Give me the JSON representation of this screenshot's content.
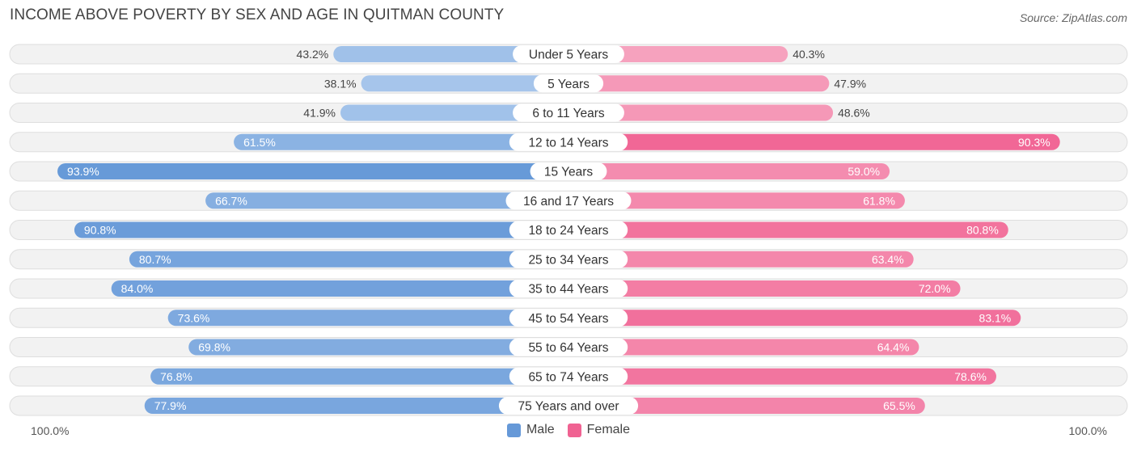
{
  "title": "INCOME ABOVE POVERTY BY SEX AND AGE IN QUITMAN COUNTY",
  "source": "Source: ZipAtlas.com",
  "colors": {
    "male": "#6699d8",
    "female": "#f06292",
    "male_light": "#a9c7ec",
    "female_light": "#f7a8c2"
  },
  "axis": {
    "left_label": "100.0%",
    "right_label": "100.0%"
  },
  "legend": [
    {
      "label": "Male",
      "color": "#6699d8"
    },
    {
      "label": "Female",
      "color": "#f06292"
    }
  ],
  "chart_data": {
    "type": "bar",
    "orientation": "horizontal-diverging",
    "categories": [
      "Under 5 Years",
      "5 Years",
      "6 to 11 Years",
      "12 to 14 Years",
      "15 Years",
      "16 and 17 Years",
      "18 to 24 Years",
      "25 to 34 Years",
      "35 to 44 Years",
      "45 to 54 Years",
      "55 to 64 Years",
      "65 to 74 Years",
      "75 Years and over"
    ],
    "series": [
      {
        "name": "Male",
        "values": [
          43.2,
          38.1,
          41.9,
          61.5,
          93.9,
          66.7,
          90.8,
          80.7,
          84.0,
          73.6,
          69.8,
          76.8,
          77.9
        ]
      },
      {
        "name": "Female",
        "values": [
          40.3,
          47.9,
          48.6,
          90.3,
          59.0,
          61.8,
          80.8,
          63.4,
          72.0,
          83.1,
          64.4,
          78.6,
          65.5
        ]
      }
    ],
    "value_labels": {
      "male": [
        "43.2%",
        "38.1%",
        "41.9%",
        "61.5%",
        "93.9%",
        "66.7%",
        "90.8%",
        "80.7%",
        "84.0%",
        "73.6%",
        "69.8%",
        "76.8%",
        "77.9%"
      ],
      "female": [
        "40.3%",
        "47.9%",
        "48.6%",
        "90.3%",
        "59.0%",
        "61.8%",
        "80.8%",
        "63.4%",
        "72.0%",
        "83.1%",
        "64.4%",
        "78.6%",
        "65.5%"
      ]
    },
    "xlim": [
      -100,
      100
    ],
    "legend_position": "bottom-center"
  }
}
